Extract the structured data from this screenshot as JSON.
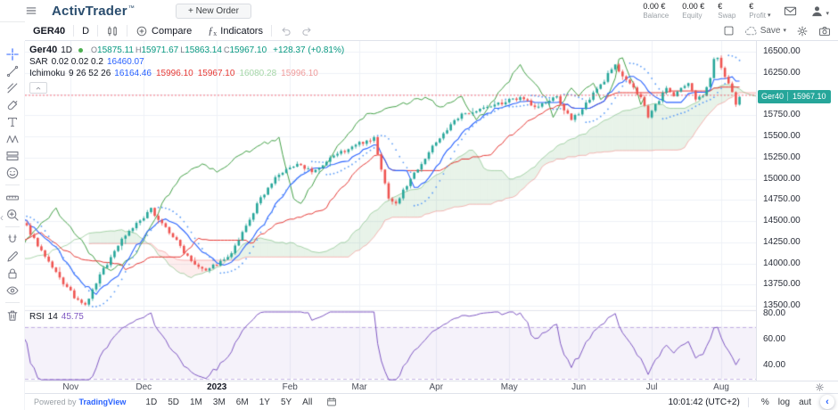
{
  "header": {
    "brand": "ActivTrader",
    "brand_tm": "™",
    "new_order_label": "+ New Order",
    "account": {
      "balance_value": "0.00 €",
      "balance_label": "Balance",
      "equity_value": "0.00 €",
      "equity_label": "Equity",
      "swap_value": "€",
      "swap_label": "Swap",
      "profit_value": "€",
      "profit_label": "Profit"
    }
  },
  "chart_toolbar": {
    "symbol": "GER40",
    "interval": "D",
    "compare_label": "Compare",
    "indicators_label": "Indicators",
    "save_label": "Save"
  },
  "sidebar": {
    "tools": [
      "crosshair",
      "trend-line",
      "fib-retracement",
      "brush",
      "text",
      "xabcd-pattern",
      "long-position",
      "emoji",
      "measure",
      "zoom-in",
      "magnet",
      "drawing-mode",
      "lock-drawings",
      "hide-drawings",
      "remove-drawings"
    ]
  },
  "legend": {
    "symbol": "Ger40",
    "interval": "1D",
    "ohlc": [
      {
        "k": "O",
        "v": "15875.11"
      },
      {
        "k": "H",
        "v": "15971.67"
      },
      {
        "k": "L",
        "v": "15863.14"
      },
      {
        "k": "C",
        "v": "15967.10"
      }
    ],
    "change": "+128.37 (+0.81%)",
    "sar": {
      "name": "SAR",
      "params": "0.02 0.02 0.2",
      "value": "16460.07"
    },
    "ichimoku": {
      "name": "Ichimoku",
      "params": "9 26 52 26",
      "values": [
        {
          "v": "16164.46",
          "c": "#2962ff"
        },
        {
          "v": "15996.10",
          "c": "#e53935"
        },
        {
          "v": "15967.10",
          "c": "#e53935"
        },
        {
          "v": "16080.28",
          "c": "#a5d6a7"
        },
        {
          "v": "15996.10",
          "c": "#ef9a9a"
        }
      ]
    },
    "rsi": {
      "name": "RSI",
      "params": "14",
      "value": "45.75"
    }
  },
  "price_axis": {
    "labels": [
      "16500.00",
      "16250.00",
      "16000.00",
      "15750.00",
      "15500.00",
      "15250.00",
      "15000.00",
      "14750.00",
      "14500.00",
      "14250.00",
      "14000.00",
      "13750.00",
      "13500.00"
    ],
    "values": [
      16500,
      16250,
      16000,
      15750,
      15500,
      15250,
      15000,
      14750,
      14500,
      14250,
      14000,
      13750,
      13500
    ],
    "badge": {
      "symbol": "Ger40",
      "price": "15967.10"
    },
    "rsi_labels": [
      {
        "t": "80.00",
        "v": 80
      },
      {
        "t": "60.00",
        "v": 60
      },
      {
        "t": "40.00",
        "v": 40
      }
    ]
  },
  "time_axis": {
    "ticks": [
      {
        "label": "Nov",
        "bar": 12
      },
      {
        "label": "Dec",
        "bar": 32
      },
      {
        "label": "2023",
        "bar": 52,
        "major": true
      },
      {
        "label": "Feb",
        "bar": 72
      },
      {
        "label": "Mar",
        "bar": 91
      },
      {
        "label": "Apr",
        "bar": 112
      },
      {
        "label": "May",
        "bar": 132
      },
      {
        "label": "Jun",
        "bar": 151
      },
      {
        "label": "Jul",
        "bar": 171
      },
      {
        "label": "Aug",
        "bar": 190
      }
    ]
  },
  "bottom_bar": {
    "powered_by": "Powered by",
    "tradingview": "TradingView",
    "ranges": [
      "1D",
      "5D",
      "1M",
      "3M",
      "6M",
      "1Y",
      "5Y",
      "All"
    ],
    "clock": "10:01:42 (UTC+2)",
    "percent_label": "%",
    "log_label": "log",
    "auto_label": "aut"
  },
  "chart_data": {
    "type": "candlestick",
    "symbol": "Ger40",
    "interval": "1D",
    "visible_bars": 196,
    "lookback": 60,
    "slots": 200,
    "price_range": {
      "min": 13500,
      "max": 16500
    },
    "axis_step": 250,
    "price_line": 15985,
    "last_candle": {
      "o": 15875.11,
      "h": 15971.67,
      "l": 15863.14,
      "c": 15967.1,
      "change": 128.37,
      "change_pct": 0.81
    },
    "indicators": {
      "sar": {
        "start": 0.02,
        "increment": 0.02,
        "max": 0.2,
        "value": 16460.07
      },
      "ichimoku": {
        "conversion": 9,
        "base": 26,
        "span_b": 52,
        "displacement": 26,
        "values": {
          "conversion": 16164.46,
          "base": 15996.1,
          "lagging": 15967.1,
          "lead_a": 16080.28,
          "lead_b": 15996.1
        }
      },
      "rsi": {
        "length": 14,
        "value": 45.75,
        "upper_band": 70,
        "lower_band": 30
      }
    },
    "close_anchors": [
      [
        -60,
        14150
      ],
      [
        -48,
        14380
      ],
      [
        -38,
        14060
      ],
      [
        -28,
        13920
      ],
      [
        -18,
        14400
      ],
      [
        -8,
        14560
      ],
      [
        -3,
        14500
      ],
      [
        0,
        14430
      ],
      [
        3,
        14220
      ],
      [
        6,
        14000
      ],
      [
        9,
        13820
      ],
      [
        12,
        13660
      ],
      [
        14,
        13550
      ],
      [
        16,
        13500
      ],
      [
        18,
        13680
      ],
      [
        20,
        13860
      ],
      [
        23,
        14070
      ],
      [
        26,
        14290
      ],
      [
        29,
        14430
      ],
      [
        32,
        14530
      ],
      [
        34,
        14640
      ],
      [
        37,
        14470
      ],
      [
        40,
        14320
      ],
      [
        43,
        14140
      ],
      [
        46,
        14000
      ],
      [
        49,
        13930
      ],
      [
        52,
        13990
      ],
      [
        55,
        14060
      ],
      [
        57,
        14190
      ],
      [
        60,
        14430
      ],
      [
        63,
        14690
      ],
      [
        66,
        14900
      ],
      [
        69,
        15050
      ],
      [
        72,
        15120
      ],
      [
        75,
        15180
      ],
      [
        78,
        15060
      ],
      [
        81,
        15140
      ],
      [
        84,
        15280
      ],
      [
        87,
        15330
      ],
      [
        90,
        15400
      ],
      [
        93,
        15450
      ],
      [
        95,
        15480
      ],
      [
        97,
        15100
      ],
      [
        99,
        14780
      ],
      [
        101,
        14700
      ],
      [
        104,
        14930
      ],
      [
        107,
        15130
      ],
      [
        110,
        15310
      ],
      [
        113,
        15490
      ],
      [
        116,
        15630
      ],
      [
        119,
        15750
      ],
      [
        122,
        15800
      ],
      [
        125,
        15830
      ],
      [
        128,
        15870
      ],
      [
        131,
        15910
      ],
      [
        134,
        15940
      ],
      [
        136,
        15960
      ],
      [
        139,
        15840
      ],
      [
        142,
        15900
      ],
      [
        145,
        15960
      ],
      [
        147,
        15820
      ],
      [
        149,
        15680
      ],
      [
        151,
        15780
      ],
      [
        154,
        15950
      ],
      [
        157,
        16100
      ],
      [
        159,
        16230
      ],
      [
        161,
        16330
      ],
      [
        163,
        16230
      ],
      [
        165,
        16120
      ],
      [
        167,
        16010
      ],
      [
        169,
        15870
      ],
      [
        170,
        15720
      ],
      [
        172,
        15870
      ],
      [
        175,
        16070
      ],
      [
        177,
        15980
      ],
      [
        179,
        16060
      ],
      [
        181,
        16110
      ],
      [
        183,
        15950
      ],
      [
        185,
        16000
      ],
      [
        187,
        16180
      ],
      [
        188,
        16400
      ],
      [
        189,
        16450
      ],
      [
        190,
        16300
      ],
      [
        192,
        16120
      ],
      [
        193,
        16000
      ],
      [
        194,
        15880
      ],
      [
        195,
        15967
      ]
    ],
    "colors": {
      "up": "#26a69a",
      "down": "#ef5350",
      "conversion": "#2962ff",
      "base": "#e53935",
      "lagging": "#43a047",
      "lead_a": "rgba(67,160,71,0.55)",
      "lead_b": "rgba(239,83,80,0.5)",
      "cloud_up": "rgba(67,160,71,0.12)",
      "cloud_down": "rgba(239,83,80,0.10)",
      "sar": "#5b9cf6",
      "rsi": "#7e57c2",
      "rsi_band": "rgba(126,87,194,0.08)",
      "rsi_guide": "#b39ddb",
      "grid": "#eef1f7",
      "badge": "#26a69a",
      "price_line": "#f7525f"
    }
  }
}
